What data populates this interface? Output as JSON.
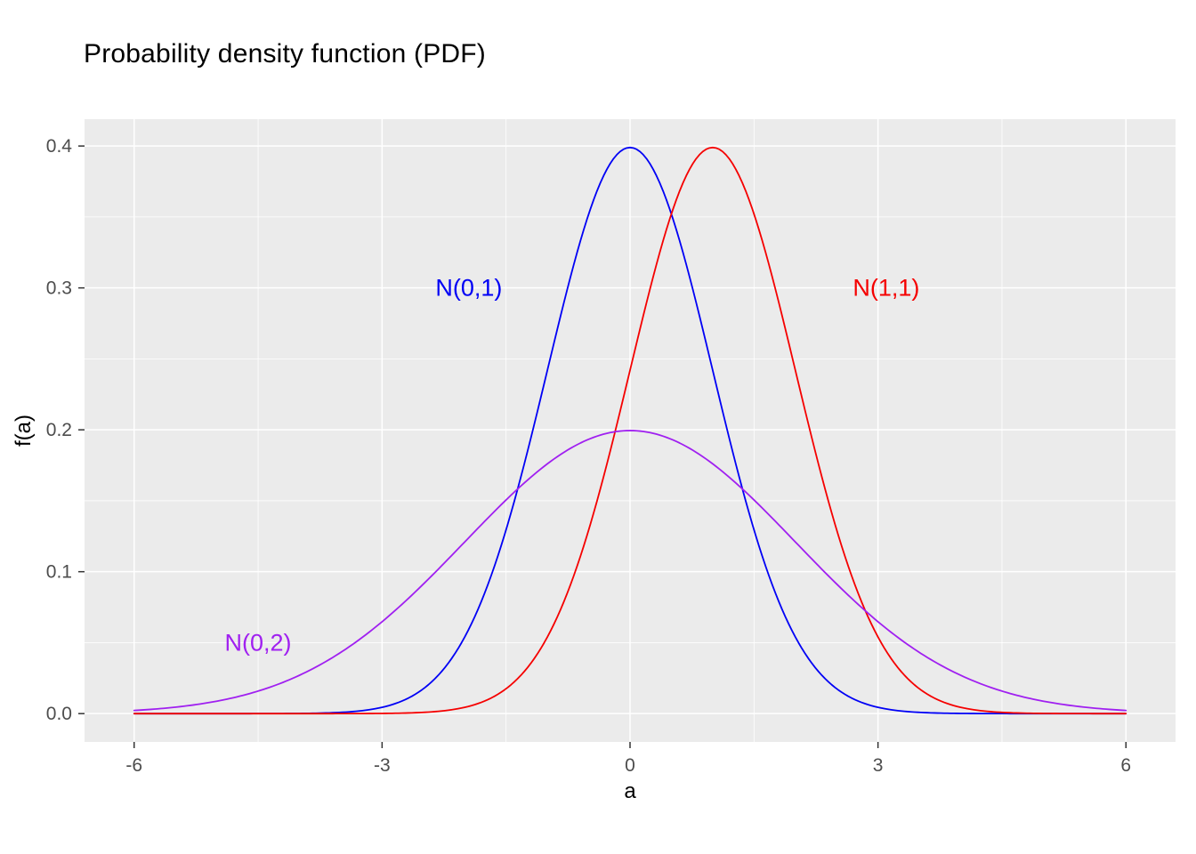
{
  "chart_data": {
    "type": "line",
    "title": "Probability density function (PDF)",
    "xlabel": "a",
    "ylabel": "f(a)",
    "x_range": [
      -6,
      6
    ],
    "ylim": [
      0,
      0.4
    ],
    "x_ticks": [
      -6,
      -3,
      0,
      3,
      6
    ],
    "x_tick_labels": [
      "-6",
      "-3",
      "0",
      "3",
      "6"
    ],
    "y_ticks": [
      0,
      0.1,
      0.2,
      0.3,
      0.4
    ],
    "y_tick_labels": [
      "0.0",
      "0.1",
      "0.2",
      "0.3",
      "0.4"
    ],
    "grid": true,
    "legend": "none",
    "panel_background": "#EBEBEB",
    "gridline_color": "#FFFFFF",
    "tick_text_color": "#4D4D4D",
    "tick_mark_color": "#333333",
    "series": [
      {
        "name": "N(0,1)",
        "distribution": "normal",
        "mean": 0,
        "sd": 1,
        "color": "#0000F5",
        "peak_x": 0,
        "peak_y": 0.399
      },
      {
        "name": "N(1,1)",
        "distribution": "normal",
        "mean": 1,
        "sd": 1,
        "color": "#F50000",
        "peak_x": 1,
        "peak_y": 0.399
      },
      {
        "name": "N(0,2)",
        "distribution": "normal",
        "mean": 0,
        "sd": 2,
        "color": "#A020F0",
        "peak_x": 0,
        "peak_y": 0.199
      }
    ],
    "annotations": [
      {
        "label": "N(0,1)",
        "x": -1.95,
        "y": 0.3,
        "color": "#0000F5"
      },
      {
        "label": "N(1,1)",
        "x": 3.1,
        "y": 0.3,
        "color": "#F50000"
      },
      {
        "label": "N(0,2)",
        "x": -4.5,
        "y": 0.05,
        "color": "#A020F0"
      }
    ]
  }
}
